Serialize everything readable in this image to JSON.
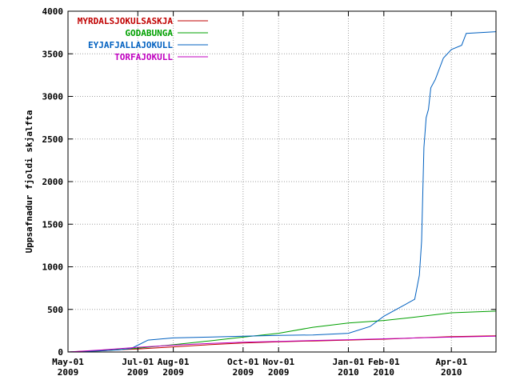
{
  "chart_data": {
    "type": "line",
    "ylabel": "Uppsafnadur fjoldi skjalfta",
    "xlabel": "",
    "title": "",
    "grid": true,
    "legend_position": "top-left",
    "xlim": [
      "2009-05-01",
      "2010-05-10"
    ],
    "ylim": [
      0,
      4000
    ],
    "y_ticks": [
      0,
      500,
      1000,
      1500,
      2000,
      2500,
      3000,
      3500,
      4000
    ],
    "x_ticks": [
      {
        "date": "2009-05-01",
        "label": [
          "May-01",
          "2009"
        ]
      },
      {
        "date": "2009-07-01",
        "label": [
          "Jul-01",
          "2009"
        ]
      },
      {
        "date": "2009-08-01",
        "label": [
          "Aug-01",
          "2009"
        ]
      },
      {
        "date": "2009-10-01",
        "label": [
          "Oct-01",
          "2009"
        ]
      },
      {
        "date": "2009-11-01",
        "label": [
          "Nov-01",
          "2009"
        ]
      },
      {
        "date": "2010-01-01",
        "label": [
          "Jan-01",
          "2010"
        ]
      },
      {
        "date": "2010-02-01",
        "label": [
          "Feb-01",
          "2010"
        ]
      },
      {
        "date": "2010-04-01",
        "label": [
          "Apr-01",
          "2010"
        ]
      }
    ],
    "series": [
      {
        "name": "MYRDALSJOKULSASKJA",
        "color": "#c00000",
        "points": [
          [
            "2009-05-01",
            0
          ],
          [
            "2009-06-01",
            20
          ],
          [
            "2009-07-01",
            35
          ],
          [
            "2009-08-01",
            60
          ],
          [
            "2009-09-01",
            85
          ],
          [
            "2009-10-01",
            105
          ],
          [
            "2009-11-01",
            120
          ],
          [
            "2009-12-01",
            130
          ],
          [
            "2010-01-01",
            140
          ],
          [
            "2010-02-01",
            150
          ],
          [
            "2010-03-01",
            165
          ],
          [
            "2010-04-01",
            180
          ],
          [
            "2010-05-10",
            190
          ]
        ]
      },
      {
        "name": "GODABUNGA",
        "color": "#00a000",
        "points": [
          [
            "2009-05-01",
            0
          ],
          [
            "2009-06-01",
            15
          ],
          [
            "2009-07-01",
            45
          ],
          [
            "2009-08-01",
            85
          ],
          [
            "2009-09-01",
            130
          ],
          [
            "2009-10-01",
            175
          ],
          [
            "2009-11-01",
            220
          ],
          [
            "2009-12-01",
            290
          ],
          [
            "2010-01-01",
            340
          ],
          [
            "2010-02-01",
            370
          ],
          [
            "2010-03-01",
            410
          ],
          [
            "2010-04-01",
            460
          ],
          [
            "2010-05-10",
            480
          ]
        ]
      },
      {
        "name": "EYJAFJALLAJOKULL",
        "color": "#0060c0",
        "points": [
          [
            "2009-05-01",
            0
          ],
          [
            "2009-06-01",
            15
          ],
          [
            "2009-06-15",
            25
          ],
          [
            "2009-06-25",
            40
          ],
          [
            "2009-07-01",
            80
          ],
          [
            "2009-07-10",
            140
          ],
          [
            "2009-08-01",
            165
          ],
          [
            "2009-09-01",
            175
          ],
          [
            "2009-10-01",
            185
          ],
          [
            "2009-11-01",
            195
          ],
          [
            "2009-12-01",
            200
          ],
          [
            "2010-01-01",
            220
          ],
          [
            "2010-01-20",
            300
          ],
          [
            "2010-02-01",
            420
          ],
          [
            "2010-02-20",
            560
          ],
          [
            "2010-02-28",
            620
          ],
          [
            "2010-03-04",
            900
          ],
          [
            "2010-03-06",
            1300
          ],
          [
            "2010-03-08",
            2400
          ],
          [
            "2010-03-10",
            2750
          ],
          [
            "2010-03-12",
            2850
          ],
          [
            "2010-03-14",
            3100
          ],
          [
            "2010-03-18",
            3200
          ],
          [
            "2010-03-25",
            3450
          ],
          [
            "2010-04-01",
            3550
          ],
          [
            "2010-04-10",
            3600
          ],
          [
            "2010-04-14",
            3740
          ],
          [
            "2010-05-10",
            3760
          ]
        ]
      },
      {
        "name": "TORFAJOKULL",
        "color": "#c000c0",
        "points": [
          [
            "2009-05-01",
            0
          ],
          [
            "2009-06-01",
            25
          ],
          [
            "2009-07-01",
            55
          ],
          [
            "2009-08-01",
            80
          ],
          [
            "2009-09-01",
            100
          ],
          [
            "2009-10-01",
            115
          ],
          [
            "2009-11-01",
            125
          ],
          [
            "2009-12-01",
            135
          ],
          [
            "2010-01-01",
            145
          ],
          [
            "2010-02-01",
            155
          ],
          [
            "2010-03-01",
            165
          ],
          [
            "2010-04-01",
            175
          ],
          [
            "2010-05-10",
            185
          ]
        ]
      }
    ]
  }
}
